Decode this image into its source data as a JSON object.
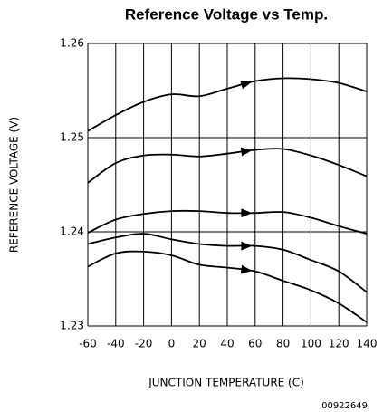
{
  "chart_data": {
    "type": "line",
    "title": "Reference Voltage vs Temp.",
    "xlabel": "JUNCTION TEMPERATURE (C)",
    "ylabel": "REFERENCE VOLTAGE (V)",
    "footnote": "00922649",
    "x": [
      -60,
      -40,
      -20,
      0,
      20,
      40,
      60,
      80,
      100,
      120,
      140
    ],
    "series": [
      {
        "color": "#000000",
        "values": [
          1.2507,
          1.2524,
          1.2538,
          1.2546,
          1.2544,
          1.2552,
          1.256,
          1.2563,
          1.2562,
          1.2558,
          1.2549
        ]
      },
      {
        "color": "#000000",
        "values": [
          1.2452,
          1.2473,
          1.2481,
          1.2482,
          1.248,
          1.2483,
          1.2487,
          1.2488,
          1.2481,
          1.2471,
          1.2459
        ]
      },
      {
        "color": "#000000",
        "values": [
          1.2399,
          1.2413,
          1.2419,
          1.2422,
          1.2422,
          1.242,
          1.242,
          1.2421,
          1.2415,
          1.2406,
          1.2398
        ]
      },
      {
        "color": "#000000",
        "values": [
          1.2387,
          1.2394,
          1.2398,
          1.2392,
          1.2387,
          1.2385,
          1.2385,
          1.2381,
          1.237,
          1.2358,
          1.2336
        ]
      },
      {
        "color": "#000000",
        "values": [
          1.2363,
          1.2377,
          1.2379,
          1.2375,
          1.2365,
          1.2362,
          1.2358,
          1.2348,
          1.2338,
          1.2324,
          1.2304
        ]
      }
    ],
    "xlim": [
      -60,
      140
    ],
    "xticks": [
      -60,
      -40,
      -20,
      0,
      20,
      40,
      60,
      80,
      100,
      120,
      140
    ],
    "ylim": [
      1.23,
      1.26
    ],
    "yticks": [
      1.23,
      1.24,
      1.25,
      1.26
    ],
    "grid": true
  }
}
